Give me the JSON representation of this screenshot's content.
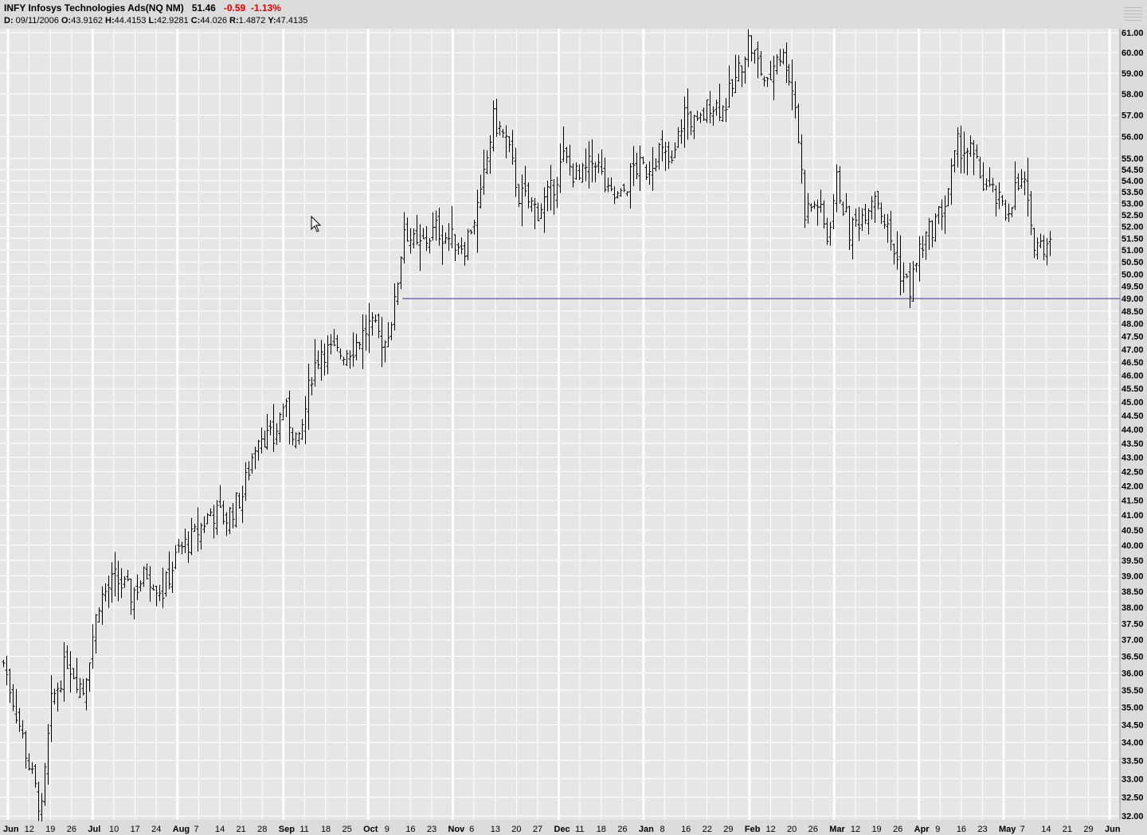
{
  "header": {
    "title": "INFY Infosys Technologies Ads(NQ NM)",
    "last": "51.46",
    "change": "-0.59",
    "change_pct": "-1.13%",
    "ohlc_line": {
      "d_label": "D:",
      "d": "09/11/2006",
      "o_label": "O:",
      "o": "43.9162",
      "h_label": "H:",
      "h": "44.4153",
      "l_label": "L:",
      "l": "42.9281",
      "c_label": "C:",
      "c": "44.026",
      "r_label": "R:",
      "r": "1.4872",
      "y_label": "Y:",
      "y": "47.4135"
    }
  },
  "colors": {
    "background": "#e6e6e6",
    "major_grid": "#ffffff",
    "bars": "#000000",
    "hline": "#3b1fa6",
    "negative": "#e00000"
  },
  "chart_data": {
    "type": "ohlc",
    "y_axis_labels": [
      "61.00",
      "60.00",
      "59.00",
      "58.00",
      "57.00",
      "56.00",
      "55.00",
      "54.50",
      "54.00",
      "53.50",
      "53.00",
      "52.50",
      "52.00",
      "51.50",
      "51.00",
      "50.50",
      "50.00",
      "49.50",
      "49.00",
      "48.50",
      "48.00",
      "47.50",
      "47.00",
      "46.50",
      "46.00",
      "45.50",
      "45.00",
      "44.50",
      "44.00",
      "43.50",
      "43.00",
      "42.50",
      "42.00",
      "41.50",
      "41.00",
      "40.50",
      "40.00",
      "39.50",
      "39.00",
      "38.50",
      "38.00",
      "37.50",
      "37.00",
      "36.50",
      "36.00",
      "35.50",
      "35.00",
      "34.50",
      "34.00",
      "33.50",
      "33.00",
      "32.50",
      "32.00"
    ],
    "ylim": [
      31.9,
      61.2
    ],
    "y_scale": "log",
    "x_ticks": [
      {
        "label": "Jun",
        "month": true
      },
      {
        "label": "12"
      },
      {
        "label": "19"
      },
      {
        "label": "26"
      },
      {
        "label": "Jul",
        "month": true
      },
      {
        "label": "10"
      },
      {
        "label": "17"
      },
      {
        "label": "24"
      },
      {
        "label": "Aug",
        "month": true
      },
      {
        "label": "7"
      },
      {
        "label": "14"
      },
      {
        "label": "21"
      },
      {
        "label": "28"
      },
      {
        "label": "Sep",
        "month": true
      },
      {
        "label": "11"
      },
      {
        "label": "18"
      },
      {
        "label": "25"
      },
      {
        "label": "Oct",
        "month": true
      },
      {
        "label": "9"
      },
      {
        "label": "16"
      },
      {
        "label": "23"
      },
      {
        "label": "Nov",
        "month": true
      },
      {
        "label": "6"
      },
      {
        "label": "13"
      },
      {
        "label": "20"
      },
      {
        "label": "27"
      },
      {
        "label": "Dec",
        "month": true
      },
      {
        "label": "11"
      },
      {
        "label": "18"
      },
      {
        "label": "26"
      },
      {
        "label": "Jan",
        "month": true
      },
      {
        "label": "8"
      },
      {
        "label": "16"
      },
      {
        "label": "22"
      },
      {
        "label": "29"
      },
      {
        "label": "Feb",
        "month": true
      },
      {
        "label": "12"
      },
      {
        "label": "20"
      },
      {
        "label": "26"
      },
      {
        "label": "Mar",
        "month": true
      },
      {
        "label": "12"
      },
      {
        "label": "19"
      },
      {
        "label": "26"
      },
      {
        "label": "Apr",
        "month": true
      },
      {
        "label": "9"
      },
      {
        "label": "16"
      },
      {
        "label": "23"
      },
      {
        "label": "May",
        "month": true
      },
      {
        "label": "7"
      },
      {
        "label": "14"
      },
      {
        "label": "21"
      },
      {
        "label": "29"
      },
      {
        "label": "Jun",
        "month": true
      }
    ],
    "horizontal_line": 49.0,
    "ohlc_keypoints": [
      [
        0,
        36.3
      ],
      [
        5,
        34.5
      ],
      [
        9,
        33.0
      ],
      [
        12,
        32.1
      ],
      [
        15,
        35.1
      ],
      [
        20,
        36.4
      ],
      [
        25,
        35.5
      ],
      [
        30,
        38.2
      ],
      [
        35,
        38.9
      ],
      [
        40,
        38.4
      ],
      [
        45,
        39.1
      ],
      [
        50,
        38.5
      ],
      [
        55,
        39.8
      ],
      [
        60,
        40.3
      ],
      [
        65,
        41.1
      ],
      [
        70,
        40.9
      ],
      [
        75,
        41.7
      ],
      [
        80,
        43.9
      ],
      [
        85,
        43.6
      ],
      [
        88,
        44.9
      ],
      [
        93,
        43.4
      ],
      [
        97,
        46.1
      ],
      [
        100,
        47.0
      ],
      [
        105,
        46.8
      ],
      [
        110,
        47.1
      ],
      [
        115,
        47.9
      ],
      [
        120,
        47.3
      ],
      [
        123,
        48.7
      ],
      [
        126,
        52.0
      ],
      [
        130,
        51.0
      ],
      [
        136,
        51.9
      ],
      [
        140,
        51.5
      ],
      [
        145,
        51.2
      ],
      [
        150,
        53.2
      ],
      [
        154,
        56.8
      ],
      [
        158,
        55.8
      ],
      [
        162,
        53.4
      ],
      [
        168,
        52.7
      ],
      [
        172,
        53.5
      ],
      [
        176,
        55.0
      ],
      [
        181,
        54.0
      ],
      [
        186,
        55.0
      ],
      [
        190,
        53.3
      ],
      [
        194,
        53.2
      ],
      [
        198,
        54.6
      ],
      [
        202,
        54.5
      ],
      [
        206,
        55.4
      ],
      [
        210,
        54.6
      ],
      [
        214,
        57.2
      ],
      [
        218,
        56.4
      ],
      [
        222,
        57.6
      ],
      [
        226,
        57.3
      ],
      [
        230,
        58.6
      ],
      [
        234,
        60.6
      ],
      [
        237,
        59.5
      ],
      [
        240,
        58.3
      ],
      [
        243,
        60.0
      ],
      [
        246,
        59.6
      ],
      [
        249,
        57.5
      ],
      [
        252,
        52.7
      ],
      [
        256,
        53.0
      ],
      [
        259,
        51.5
      ],
      [
        262,
        54.0
      ],
      [
        266,
        51.8
      ],
      [
        270,
        52.5
      ],
      [
        274,
        53.6
      ],
      [
        278,
        51.8
      ],
      [
        282,
        50.1
      ],
      [
        285,
        49.4
      ],
      [
        288,
        51.0
      ],
      [
        292,
        52.0
      ],
      [
        296,
        53.0
      ],
      [
        300,
        55.6
      ],
      [
        304,
        55.3
      ],
      [
        308,
        53.9
      ],
      [
        312,
        53.2
      ],
      [
        315,
        52.5
      ],
      [
        318,
        53.6
      ],
      [
        321,
        53.9
      ],
      [
        323,
        51.6
      ],
      [
        326,
        51.2
      ],
      [
        329,
        51.46
      ]
    ]
  }
}
